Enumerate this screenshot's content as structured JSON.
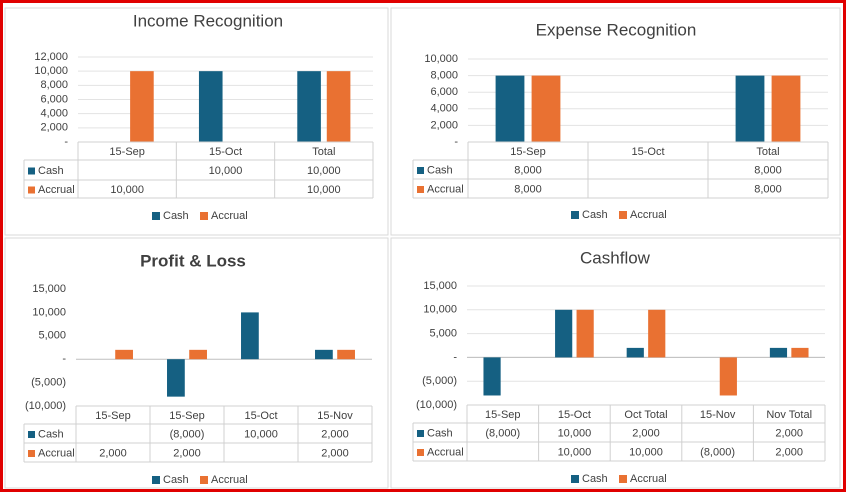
{
  "chart_data": [
    {
      "type": "bar",
      "title": "Income Recognition",
      "categories": [
        "15-Sep",
        "15-Oct",
        "Total"
      ],
      "series": [
        {
          "name": "Cash",
          "color": "#156082",
          "values": [
            null,
            10000,
            10000
          ],
          "value_labels": [
            null,
            "10,000",
            "10,000"
          ]
        },
        {
          "name": "Accrual",
          "color": "#e97132",
          "values": [
            10000,
            null,
            10000
          ],
          "value_labels": [
            "10,000",
            null,
            "10,000"
          ]
        }
      ],
      "ylim": [
        0,
        12000
      ],
      "yticks": [
        {
          "value": 0,
          "label": "-"
        },
        {
          "value": 2000,
          "label": "2,000"
        },
        {
          "value": 4000,
          "label": "4,000"
        },
        {
          "value": 6000,
          "label": "6,000"
        },
        {
          "value": 8000,
          "label": "8,000"
        },
        {
          "value": 10000,
          "label": "10,000"
        },
        {
          "value": 12000,
          "label": "12,000"
        }
      ],
      "grid": true
    },
    {
      "type": "bar",
      "title": "Expense Recognition",
      "categories": [
        "15-Sep",
        "15-Oct",
        "Total"
      ],
      "series": [
        {
          "name": "Cash",
          "color": "#156082",
          "values": [
            8000,
            null,
            8000
          ],
          "value_labels": [
            "8,000",
            null,
            "8,000"
          ]
        },
        {
          "name": "Accrual",
          "color": "#e97132",
          "values": [
            8000,
            null,
            8000
          ],
          "value_labels": [
            "8,000",
            null,
            "8,000"
          ]
        }
      ],
      "ylim": [
        0,
        10000
      ],
      "yticks": [
        {
          "value": 0,
          "label": "-"
        },
        {
          "value": 2000,
          "label": "2,000"
        },
        {
          "value": 4000,
          "label": "4,000"
        },
        {
          "value": 6000,
          "label": "6,000"
        },
        {
          "value": 8000,
          "label": "8,000"
        },
        {
          "value": 10000,
          "label": "10,000"
        }
      ],
      "grid": true
    },
    {
      "type": "bar",
      "title": "Profit & Loss",
      "categories": [
        "15-Sep",
        "15-Sep",
        "15-Oct",
        "15-Nov"
      ],
      "series": [
        {
          "name": "Cash",
          "color": "#156082",
          "values": [
            null,
            -8000,
            10000,
            2000
          ],
          "value_labels": [
            null,
            "(8,000)",
            "10,000",
            "2,000"
          ]
        },
        {
          "name": "Accrual",
          "color": "#e97132",
          "values": [
            2000,
            2000,
            null,
            2000
          ],
          "value_labels": [
            "2,000",
            "2,000",
            null,
            "2,000"
          ]
        }
      ],
      "ylim": [
        -10000,
        15000
      ],
      "yticks": [
        {
          "value": -10000,
          "label": "(10,000)"
        },
        {
          "value": -5000,
          "label": "(5,000)"
        },
        {
          "value": 0,
          "label": "-"
        },
        {
          "value": 5000,
          "label": "5,000"
        },
        {
          "value": 10000,
          "label": "10,000"
        },
        {
          "value": 15000,
          "label": "15,000"
        }
      ],
      "grid": false
    },
    {
      "type": "bar",
      "title": "Cashflow",
      "categories": [
        "15-Sep",
        "15-Oct",
        "Oct Total",
        "15-Nov",
        "Nov Total"
      ],
      "series": [
        {
          "name": "Cash",
          "color": "#156082",
          "values": [
            -8000,
            10000,
            2000,
            null,
            2000
          ],
          "value_labels": [
            "(8,000)",
            "10,000",
            "2,000",
            null,
            "2,000"
          ]
        },
        {
          "name": "Accrual",
          "color": "#e97132",
          "values": [
            null,
            10000,
            10000,
            -8000,
            2000
          ],
          "value_labels": [
            null,
            "10,000",
            "10,000",
            "(8,000)",
            "2,000"
          ]
        }
      ],
      "ylim": [
        -10000,
        15000
      ],
      "yticks": [
        {
          "value": -10000,
          "label": "(10,000)"
        },
        {
          "value": -5000,
          "label": "(5,000)"
        },
        {
          "value": 0,
          "label": "-"
        },
        {
          "value": 5000,
          "label": "5,000"
        },
        {
          "value": 10000,
          "label": "10,000"
        },
        {
          "value": 15000,
          "label": "15,000"
        }
      ],
      "grid": true
    }
  ]
}
